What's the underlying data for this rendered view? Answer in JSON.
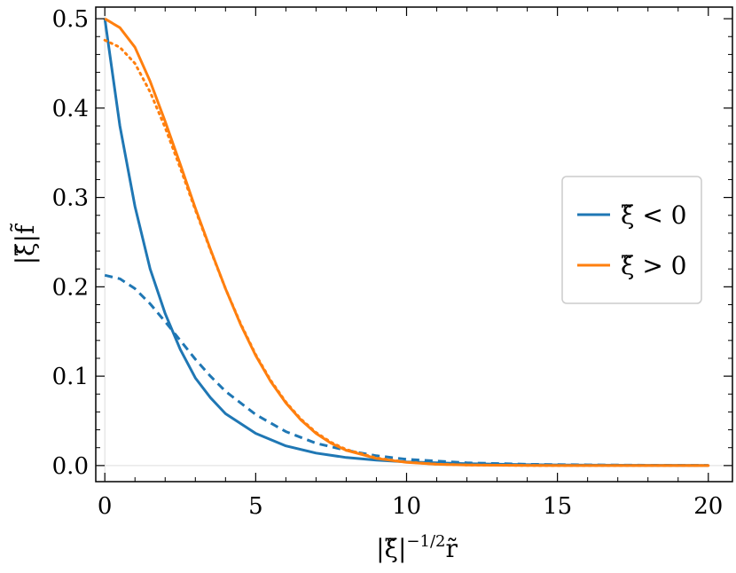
{
  "chart_data": {
    "type": "line",
    "xlabel": "|ξ̃|⁻¹ᐟ²r̃",
    "ylabel": "|ξ̃|f̃",
    "xlim": [
      -0.3,
      20.8
    ],
    "ylim": [
      -0.018,
      0.513
    ],
    "x_ticks": [
      0,
      5,
      10,
      15,
      20
    ],
    "y_ticks": [
      0.0,
      0.1,
      0.2,
      0.3,
      0.4,
      0.5
    ],
    "x_tick_labels": [
      "0",
      "5",
      "10",
      "15",
      "20"
    ],
    "y_tick_labels": [
      "0.0",
      "0.1",
      "0.2",
      "0.3",
      "0.4",
      "0.5"
    ],
    "grid": false,
    "legend_position": "right",
    "legend": [
      {
        "label": "ξ̃ < 0",
        "color": "#1f77b4"
      },
      {
        "label": "ξ̃ > 0",
        "color": "#ff7f0e"
      }
    ],
    "series": [
      {
        "name": "ξ̃ < 0",
        "color": "#1f77b4",
        "style": "solid",
        "x": [
          0,
          0.5,
          1,
          1.5,
          2,
          2.5,
          3,
          3.5,
          4,
          5,
          6,
          7,
          8,
          9,
          10,
          12,
          14,
          16,
          18,
          20
        ],
        "y": [
          0.5,
          0.38,
          0.29,
          0.22,
          0.17,
          0.13,
          0.098,
          0.076,
          0.058,
          0.036,
          0.022,
          0.014,
          0.009,
          0.006,
          0.004,
          0.002,
          0.001,
          0.0005,
          0.0003,
          0.0002
        ]
      },
      {
        "color": "#1f77b4",
        "style": "dashed",
        "x": [
          0,
          0.5,
          1,
          1.5,
          2,
          2.5,
          3,
          3.5,
          4,
          5,
          6,
          7,
          8,
          9,
          10,
          11,
          12,
          14,
          16,
          18,
          20
        ],
        "y": [
          0.213,
          0.209,
          0.198,
          0.181,
          0.161,
          0.14,
          0.119,
          0.1,
          0.083,
          0.057,
          0.038,
          0.025,
          0.017,
          0.011,
          0.007,
          0.005,
          0.003,
          0.0015,
          0.0008,
          0.0004,
          0.0002
        ]
      },
      {
        "name": "ξ̃ > 0",
        "color": "#ff7f0e",
        "style": "solid",
        "x": [
          0,
          0.5,
          1,
          1.5,
          2,
          2.5,
          3,
          3.5,
          4,
          4.5,
          5,
          5.5,
          6,
          6.5,
          7,
          7.5,
          8,
          9,
          10,
          11,
          12,
          14,
          16,
          18,
          20
        ],
        "y": [
          0.5,
          0.49,
          0.468,
          0.43,
          0.385,
          0.337,
          0.288,
          0.242,
          0.198,
          0.158,
          0.123,
          0.094,
          0.07,
          0.051,
          0.036,
          0.025,
          0.017,
          0.008,
          0.0035,
          0.0015,
          0.0006,
          0.0001,
          0.0,
          0.0,
          0.0
        ]
      },
      {
        "color": "#ff7f0e",
        "style": "dotted",
        "x": [
          0,
          0.5,
          1,
          1.5,
          2,
          2.5,
          3,
          3.5,
          4,
          4.5,
          5,
          5.5,
          6,
          6.5,
          7,
          7.5,
          8,
          9,
          10,
          11,
          12,
          14,
          16,
          18,
          20
        ],
        "y": [
          0.476,
          0.468,
          0.45,
          0.418,
          0.378,
          0.333,
          0.286,
          0.241,
          0.198,
          0.159,
          0.124,
          0.095,
          0.071,
          0.052,
          0.037,
          0.026,
          0.018,
          0.0085,
          0.0038,
          0.0016,
          0.0007,
          0.0001,
          0.0,
          0.0,
          0.0
        ]
      }
    ]
  }
}
